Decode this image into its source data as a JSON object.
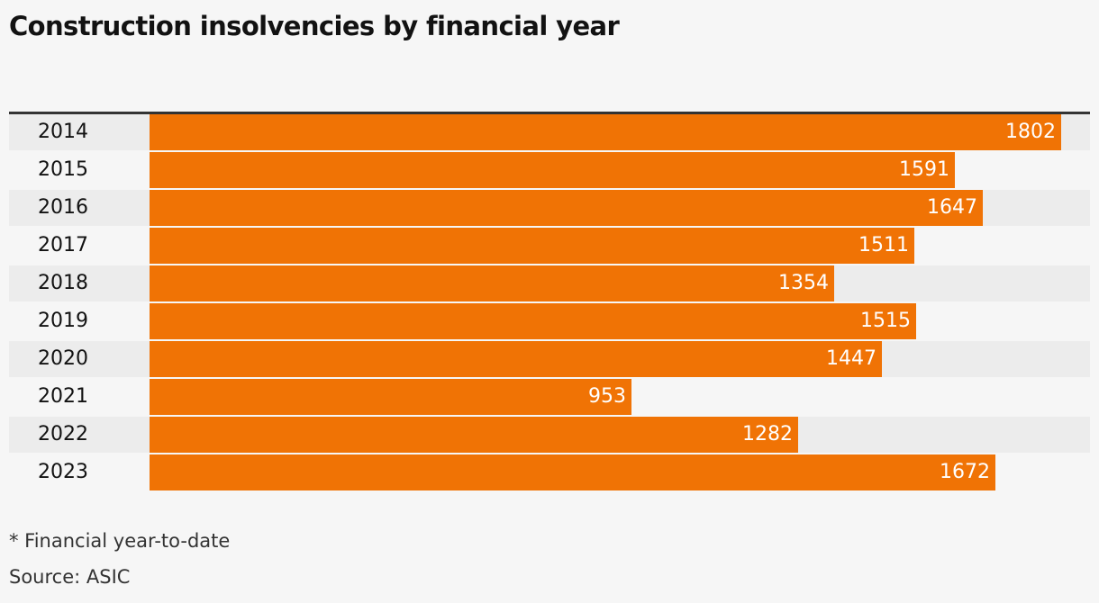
{
  "chart_data": {
    "type": "bar",
    "orientation": "horizontal",
    "title": "Construction insolvencies by financial year",
    "categories": [
      "2014",
      "2015",
      "2016",
      "2017",
      "2018",
      "2019",
      "2020",
      "2021",
      "2022",
      "2023"
    ],
    "values": [
      1802,
      1591,
      1647,
      1511,
      1354,
      1515,
      1447,
      953,
      1282,
      1672
    ],
    "xlim": [
      0,
      1802
    ],
    "grid": false,
    "colors": {
      "bar": "#f07305",
      "label": "#ffffff"
    }
  },
  "notes": {
    "footnote": "* Financial year-to-date",
    "source": "Source: ASIC"
  }
}
